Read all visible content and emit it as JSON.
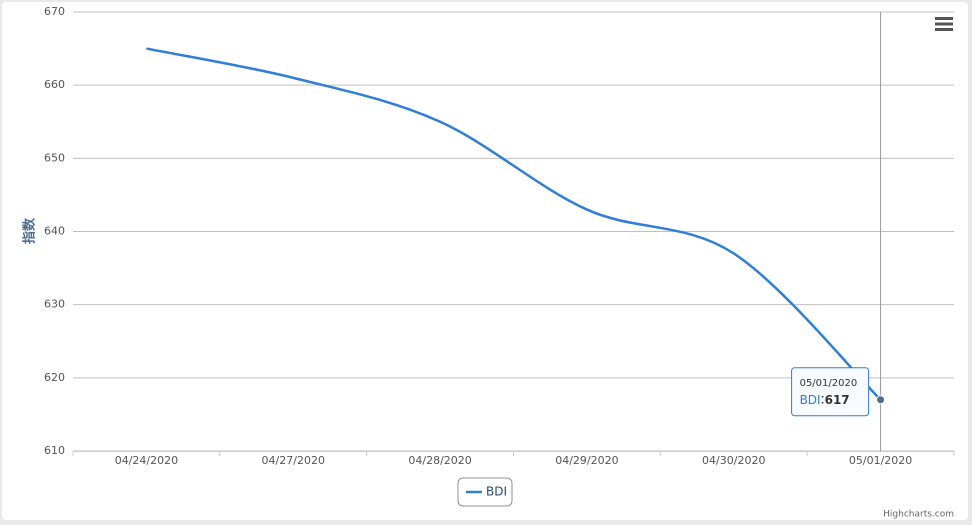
{
  "chart_data": {
    "type": "line",
    "ylabel": "指数",
    "categories": [
      "04/24/2020",
      "04/27/2020",
      "04/28/2020",
      "04/29/2020",
      "04/30/2020",
      "05/01/2020"
    ],
    "series": [
      {
        "name": "BDI",
        "color": "#2f7ed8",
        "values": [
          665,
          661,
          655,
          643,
          637,
          617
        ]
      }
    ],
    "ylim": [
      610,
      670
    ],
    "yticks": [
      610,
      620,
      630,
      640,
      650,
      660,
      670
    ],
    "grid": true,
    "credits": "Highcharts.com"
  }
}
